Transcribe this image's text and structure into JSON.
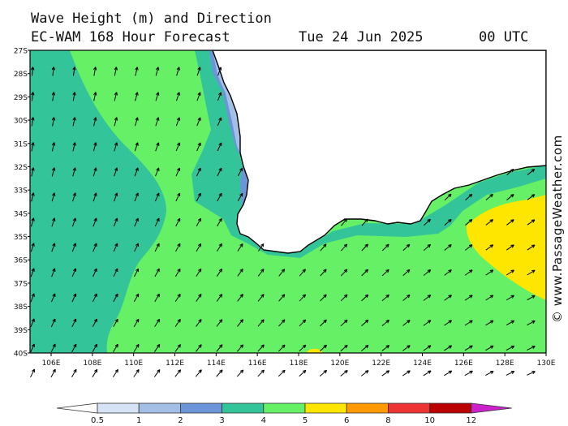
{
  "header": {
    "title": "Wave Height (m) and Direction",
    "subtitle": "EC-WAM 168 Hour Forecast",
    "date": "Tue 24 Jun 2025",
    "time": "00 UTC"
  },
  "credit": "© www.PassageWeather.com",
  "map": {
    "lat_labels": [
      "27S",
      "28S",
      "29S",
      "30S",
      "31S",
      "32S",
      "33S",
      "34S",
      "35S",
      "36S",
      "37S",
      "38S",
      "39S",
      "40S"
    ],
    "lon_labels": [
      "106E",
      "108E",
      "110E",
      "112E",
      "114E",
      "116E",
      "118E",
      "120E",
      "122E",
      "124E",
      "126E",
      "128E",
      "130E"
    ],
    "land_color": "#ffffff"
  },
  "legend": {
    "ticks": [
      "0.5",
      "1",
      "2",
      "3",
      "4",
      "5",
      "6",
      "8",
      "10",
      "12"
    ],
    "colors": [
      "#ffffff",
      "#d6e3f6",
      "#a3bfe6",
      "#6b95d8",
      "#34c49a",
      "#66f066",
      "#ffe600",
      "#ff9900",
      "#ee3333",
      "#bb0000",
      "#cc22cc"
    ]
  }
}
